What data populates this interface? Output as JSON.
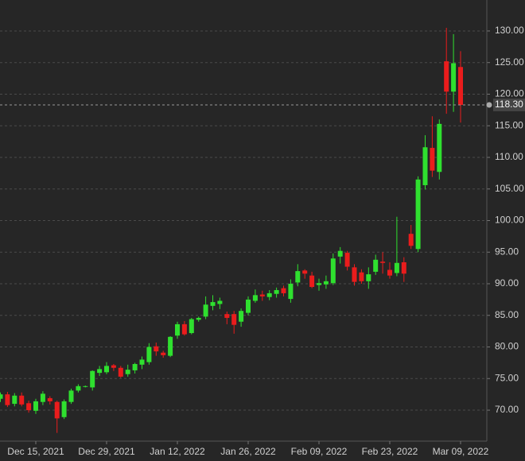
{
  "chart_data": {
    "type": "candlestick",
    "categories": [
      null,
      null,
      null,
      null,
      null,
      "Dec 15, 2021",
      null,
      null,
      null,
      null,
      null,
      null,
      null,
      null,
      null,
      "Dec 29, 2021",
      null,
      null,
      null,
      null,
      null,
      null,
      null,
      null,
      null,
      "Jan 12, 2022",
      null,
      null,
      null,
      null,
      null,
      null,
      null,
      null,
      null,
      "Jan 26, 2022",
      null,
      null,
      null,
      null,
      null,
      null,
      null,
      null,
      null,
      "Feb 09, 2022",
      null,
      null,
      null,
      null,
      null,
      null,
      null,
      null,
      null,
      "Feb 23, 2022",
      null,
      null,
      null,
      null,
      null,
      null,
      null,
      null,
      null,
      "Mar 09, 2022"
    ],
    "open": [
      71.8,
      72.5,
      71.0,
      72.3,
      71.1,
      69.9,
      71.3,
      71.9,
      71.3,
      68.9,
      71.3,
      73.1,
      73.7,
      73.6,
      75.9,
      76.0,
      77.1,
      76.7,
      75.7,
      76.3,
      77.2,
      77.6,
      80.1,
      79.1,
      78.6,
      81.8,
      83.6,
      82.2,
      84.3,
      84.8,
      86.5,
      86.8,
      85.2,
      85.2,
      84.0,
      85.4,
      87.3,
      88.3,
      87.9,
      88.4,
      89.3,
      87.6,
      90.2,
      92.1,
      91.3,
      89.8,
      89.9,
      90.1,
      94.3,
      94.9,
      92.6,
      91.8,
      90.4,
      91.9,
      93.5,
      92.2,
      91.7,
      93.4,
      97.9,
      95.5,
      105.6,
      111.5,
      107.7,
      125.2,
      120.4,
      124.3
    ],
    "high": [
      72.8,
      72.9,
      72.7,
      72.8,
      71.5,
      71.8,
      73.0,
      72.2,
      71.5,
      71.7,
      73.4,
      74.1,
      73.9,
      76.3,
      77.0,
      77.6,
      77.3,
      77.0,
      77.2,
      77.5,
      78.5,
      80.6,
      80.7,
      79.4,
      81.7,
      84.0,
      84.1,
      84.6,
      84.8,
      88.0,
      88.2,
      87.8,
      85.6,
      85.7,
      86.1,
      88.0,
      89.1,
      88.9,
      89.0,
      89.4,
      89.7,
      90.7,
      93.1,
      92.3,
      91.9,
      90.8,
      91.3,
      94.8,
      95.8,
      95.2,
      93.1,
      92.3,
      92.6,
      94.6,
      95.0,
      93.4,
      100.6,
      94.2,
      99.3,
      107.0,
      113.5,
      116.5,
      116.0,
      130.5,
      129.5,
      126.8
    ],
    "low": [
      71.3,
      70.5,
      70.6,
      70.6,
      69.6,
      69.4,
      70.8,
      70.9,
      66.4,
      68.6,
      71.0,
      72.8,
      73.6,
      73.1,
      75.4,
      75.7,
      76.2,
      75.1,
      75.3,
      75.8,
      76.5,
      77.2,
      78.6,
      78.3,
      78.4,
      81.3,
      81.8,
      82.0,
      84.0,
      84.4,
      85.8,
      86.0,
      83.6,
      82.1,
      83.2,
      85.0,
      87.0,
      87.3,
      87.4,
      87.8,
      88.0,
      87.0,
      89.6,
      90.8,
      89.3,
      88.9,
      89.2,
      89.8,
      93.2,
      92.1,
      89.7,
      90.0,
      89.2,
      91.4,
      91.6,
      90.8,
      91.2,
      90.3,
      95.5,
      95.0,
      104.9,
      106.9,
      106.5,
      116.9,
      117.2,
      115.5
    ],
    "close": [
      72.5,
      70.8,
      72.3,
      70.9,
      70.0,
      71.4,
      72.6,
      71.4,
      68.7,
      71.4,
      73.1,
      73.8,
      73.8,
      76.2,
      76.5,
      77.0,
      76.7,
      75.3,
      76.4,
      77.3,
      78.0,
      80.0,
      79.3,
      78.7,
      81.6,
      83.6,
      82.0,
      84.4,
      84.6,
      86.7,
      87.1,
      87.3,
      84.6,
      83.5,
      85.7,
      87.5,
      88.2,
      88.0,
      88.5,
      89.0,
      88.5,
      90.0,
      92.0,
      91.6,
      89.5,
      90.1,
      90.4,
      94.0,
      95.2,
      92.7,
      90.3,
      90.4,
      91.5,
      93.8,
      93.3,
      91.3,
      93.3,
      91.6,
      96.0,
      106.5,
      111.6,
      107.9,
      115.3,
      120.4,
      124.9,
      118.3
    ],
    "up_color": "#2fe02f",
    "down_color": "#ea1c1c",
    "ylim": [
      65.1,
      134.9
    ],
    "yticks": [
      {
        "value": 70,
        "label": "70.00"
      },
      {
        "value": 75,
        "label": "75.00"
      },
      {
        "value": 80,
        "label": "80.00"
      },
      {
        "value": 85,
        "label": "85.00"
      },
      {
        "value": 90,
        "label": "90.00"
      },
      {
        "value": 95,
        "label": "95.00"
      },
      {
        "value": 100,
        "label": "100.00"
      },
      {
        "value": 105,
        "label": "105.00"
      },
      {
        "value": 110,
        "label": "110.00"
      },
      {
        "value": 115,
        "label": "115.00"
      },
      {
        "value": 120,
        "label": "120.00"
      },
      {
        "value": 125,
        "label": "125.00"
      },
      {
        "value": 130,
        "label": "130.00"
      }
    ],
    "price_line": {
      "value": 118.3,
      "label": "118.30"
    },
    "grid": true
  }
}
